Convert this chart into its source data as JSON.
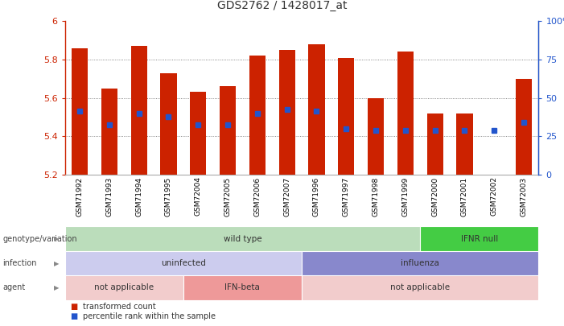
{
  "title": "GDS2762 / 1428017_at",
  "samples": [
    "GSM71992",
    "GSM71993",
    "GSM71994",
    "GSM71995",
    "GSM72004",
    "GSM72005",
    "GSM72006",
    "GSM72007",
    "GSM71996",
    "GSM71997",
    "GSM71998",
    "GSM71999",
    "GSM72000",
    "GSM72001",
    "GSM72002",
    "GSM72003"
  ],
  "bar_values": [
    5.86,
    5.65,
    5.87,
    5.73,
    5.63,
    5.66,
    5.82,
    5.85,
    5.88,
    5.81,
    5.6,
    5.84,
    5.52,
    5.52,
    5.2,
    5.7
  ],
  "percentile_values": [
    5.53,
    5.46,
    5.52,
    5.5,
    5.46,
    5.46,
    5.52,
    5.54,
    5.53,
    5.44,
    5.43,
    5.43,
    5.43,
    5.43,
    5.43,
    5.47
  ],
  "ymin": 5.2,
  "ymax": 6.0,
  "bar_color": "#cc2200",
  "percentile_color": "#2255cc",
  "annotation_rows": [
    {
      "label": "genotype/variation",
      "segments": [
        {
          "text": "wild type",
          "start": 0,
          "end": 12,
          "color": "#bbddbb"
        },
        {
          "text": "IFNR null",
          "start": 12,
          "end": 16,
          "color": "#44cc44"
        }
      ]
    },
    {
      "label": "infection",
      "segments": [
        {
          "text": "uninfected",
          "start": 0,
          "end": 8,
          "color": "#ccccee"
        },
        {
          "text": "influenza",
          "start": 8,
          "end": 16,
          "color": "#8888cc"
        }
      ]
    },
    {
      "label": "agent",
      "segments": [
        {
          "text": "not applicable",
          "start": 0,
          "end": 4,
          "color": "#f2cccc"
        },
        {
          "text": "IFN-beta",
          "start": 4,
          "end": 8,
          "color": "#ee9999"
        },
        {
          "text": "not applicable",
          "start": 8,
          "end": 16,
          "color": "#f2cccc"
        }
      ]
    }
  ],
  "legend": [
    {
      "color": "#cc2200",
      "label": "transformed count"
    },
    {
      "color": "#2255cc",
      "label": "percentile rank within the sample"
    }
  ]
}
